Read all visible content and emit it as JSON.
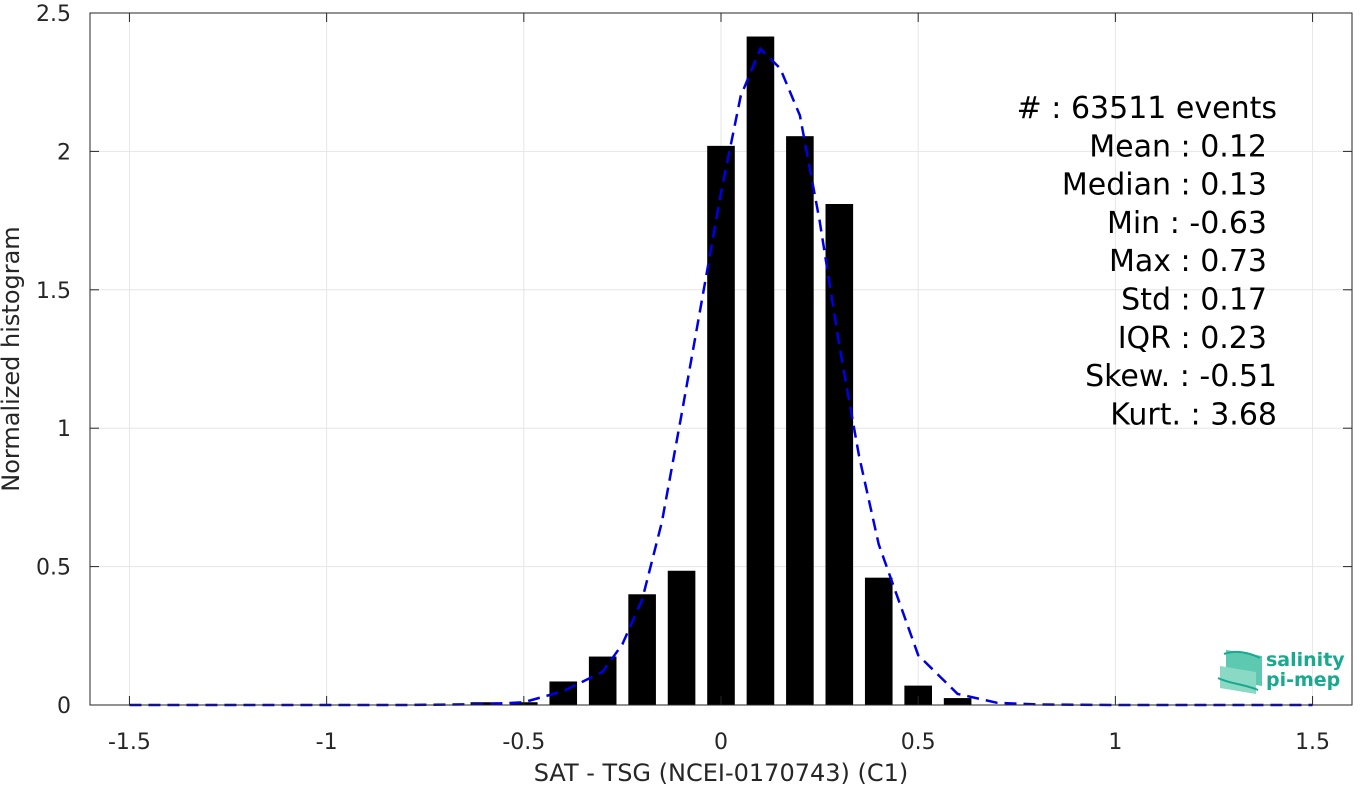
{
  "chart_data": {
    "type": "bar",
    "title": "",
    "xlabel": "SAT - TSG (NCEI-0170743) (C1)",
    "ylabel": "Normalized histogram",
    "xlim": [
      -1.6,
      1.6
    ],
    "ylim": [
      0,
      2.5
    ],
    "grid": true,
    "x_ticks": [
      -1.5,
      -1,
      -0.5,
      0,
      0.5,
      1,
      1.5
    ],
    "x_tick_labels": [
      "-1.5",
      "-1",
      "-0.5",
      "0",
      "0.5",
      "1",
      "1.5"
    ],
    "y_ticks": [
      0,
      0.5,
      1,
      1.5,
      2,
      2.5
    ],
    "y_tick_labels": [
      "0",
      "0.5",
      "1",
      "1.5",
      "2",
      "2.5"
    ],
    "bar_color": "#000000",
    "bar_width": 0.07,
    "bars": {
      "x": [
        -0.6,
        -0.5,
        -0.4,
        -0.3,
        -0.2,
        -0.1,
        0.0,
        0.1,
        0.2,
        0.3,
        0.4,
        0.5,
        0.6
      ],
      "values": [
        0.01,
        0.01,
        0.085,
        0.175,
        0.4,
        0.485,
        2.02,
        2.415,
        2.055,
        1.81,
        0.46,
        0.07,
        0.025
      ]
    },
    "fit_curve": {
      "style": "dashed",
      "color": "#0000e6",
      "x": [
        -1.5,
        -1.2,
        -1.0,
        -0.8,
        -0.6,
        -0.5,
        -0.4,
        -0.3,
        -0.25,
        -0.2,
        -0.15,
        -0.1,
        -0.05,
        0.0,
        0.05,
        0.1,
        0.15,
        0.2,
        0.25,
        0.3,
        0.35,
        0.4,
        0.5,
        0.6,
        0.7,
        0.8,
        1.0,
        1.2,
        1.5
      ],
      "values": [
        0,
        0,
        0,
        0,
        0.003,
        0.01,
        0.05,
        0.12,
        0.22,
        0.38,
        0.66,
        1.05,
        1.45,
        1.85,
        2.2,
        2.37,
        2.3,
        2.13,
        1.75,
        1.3,
        0.9,
        0.58,
        0.18,
        0.04,
        0.008,
        0.002,
        0,
        0,
        0
      ]
    },
    "annotations": [
      "#  : 63511 events",
      "Mean : 0.12",
      "Median : 0.13",
      "Min : -0.63",
      "Max : 0.73",
      "Std : 0.17",
      "IQR : 0.23",
      "Skew. : -0.51",
      "Kurt. : 3.68"
    ]
  },
  "logo": {
    "line1": "salinity",
    "line2": "pi-mep",
    "color": "#1aa98f"
  }
}
